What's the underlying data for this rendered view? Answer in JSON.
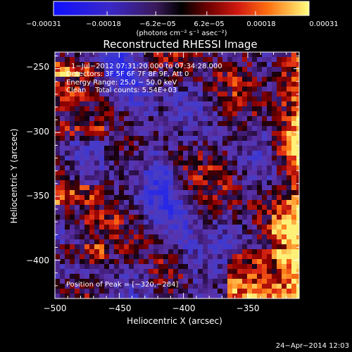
{
  "chart_data": {
    "type": "heatmap",
    "title": "Reconstructed RHESSI Image",
    "xlabel": "Heliocentric X (arcsec)",
    "ylabel": "Heliocentric Y (arcsec)",
    "xlim": [
      -500,
      -310
    ],
    "ylim": [
      -430,
      -237
    ],
    "xticks": [
      -500,
      -450,
      -400,
      -350
    ],
    "xtick_labels": [
      "−500",
      "−450",
      "−400",
      "−350"
    ],
    "yticks": [
      -250,
      -300,
      -350,
      -400
    ],
    "ytick_labels": [
      "−250",
      "−300",
      "−350",
      "−400"
    ],
    "colorbar": {
      "range": [
        -0.00031,
        0.00031
      ],
      "ticks": [
        -0.00031,
        -0.00018,
        -6.2e-05,
        6.2e-05,
        0.00018,
        0.00031
      ],
      "tick_labels": [
        "−0.00031",
        "−0.00018",
        "−6.2e−05",
        "6.2e−05",
        "0.00018",
        "0.00031"
      ],
      "unit_label": "(photons cm⁻² s⁻¹ asec⁻²)"
    },
    "annotations": {
      "time_range": "1−Jul−2012 07:31:20.000 to 07:34:28.000",
      "detectors": "Detectors: 3F 5F 6F 7F 8F 9F, Att 0",
      "energy_range": "Energy Range: 25.0 − 50.0 keV",
      "clean_total": "Clean    Total counts: 5.54E+03",
      "peak_position": "Position of Peak = [−320,−284]"
    },
    "grid": false,
    "legend": "colorbar-top"
  },
  "footer": {
    "date": "24−Apr−2014 12:03"
  },
  "colors": {
    "background": "#000000",
    "cb_negative": "#0000ff",
    "cb_mid": "#000000",
    "cb_positive": "#ffff00"
  }
}
